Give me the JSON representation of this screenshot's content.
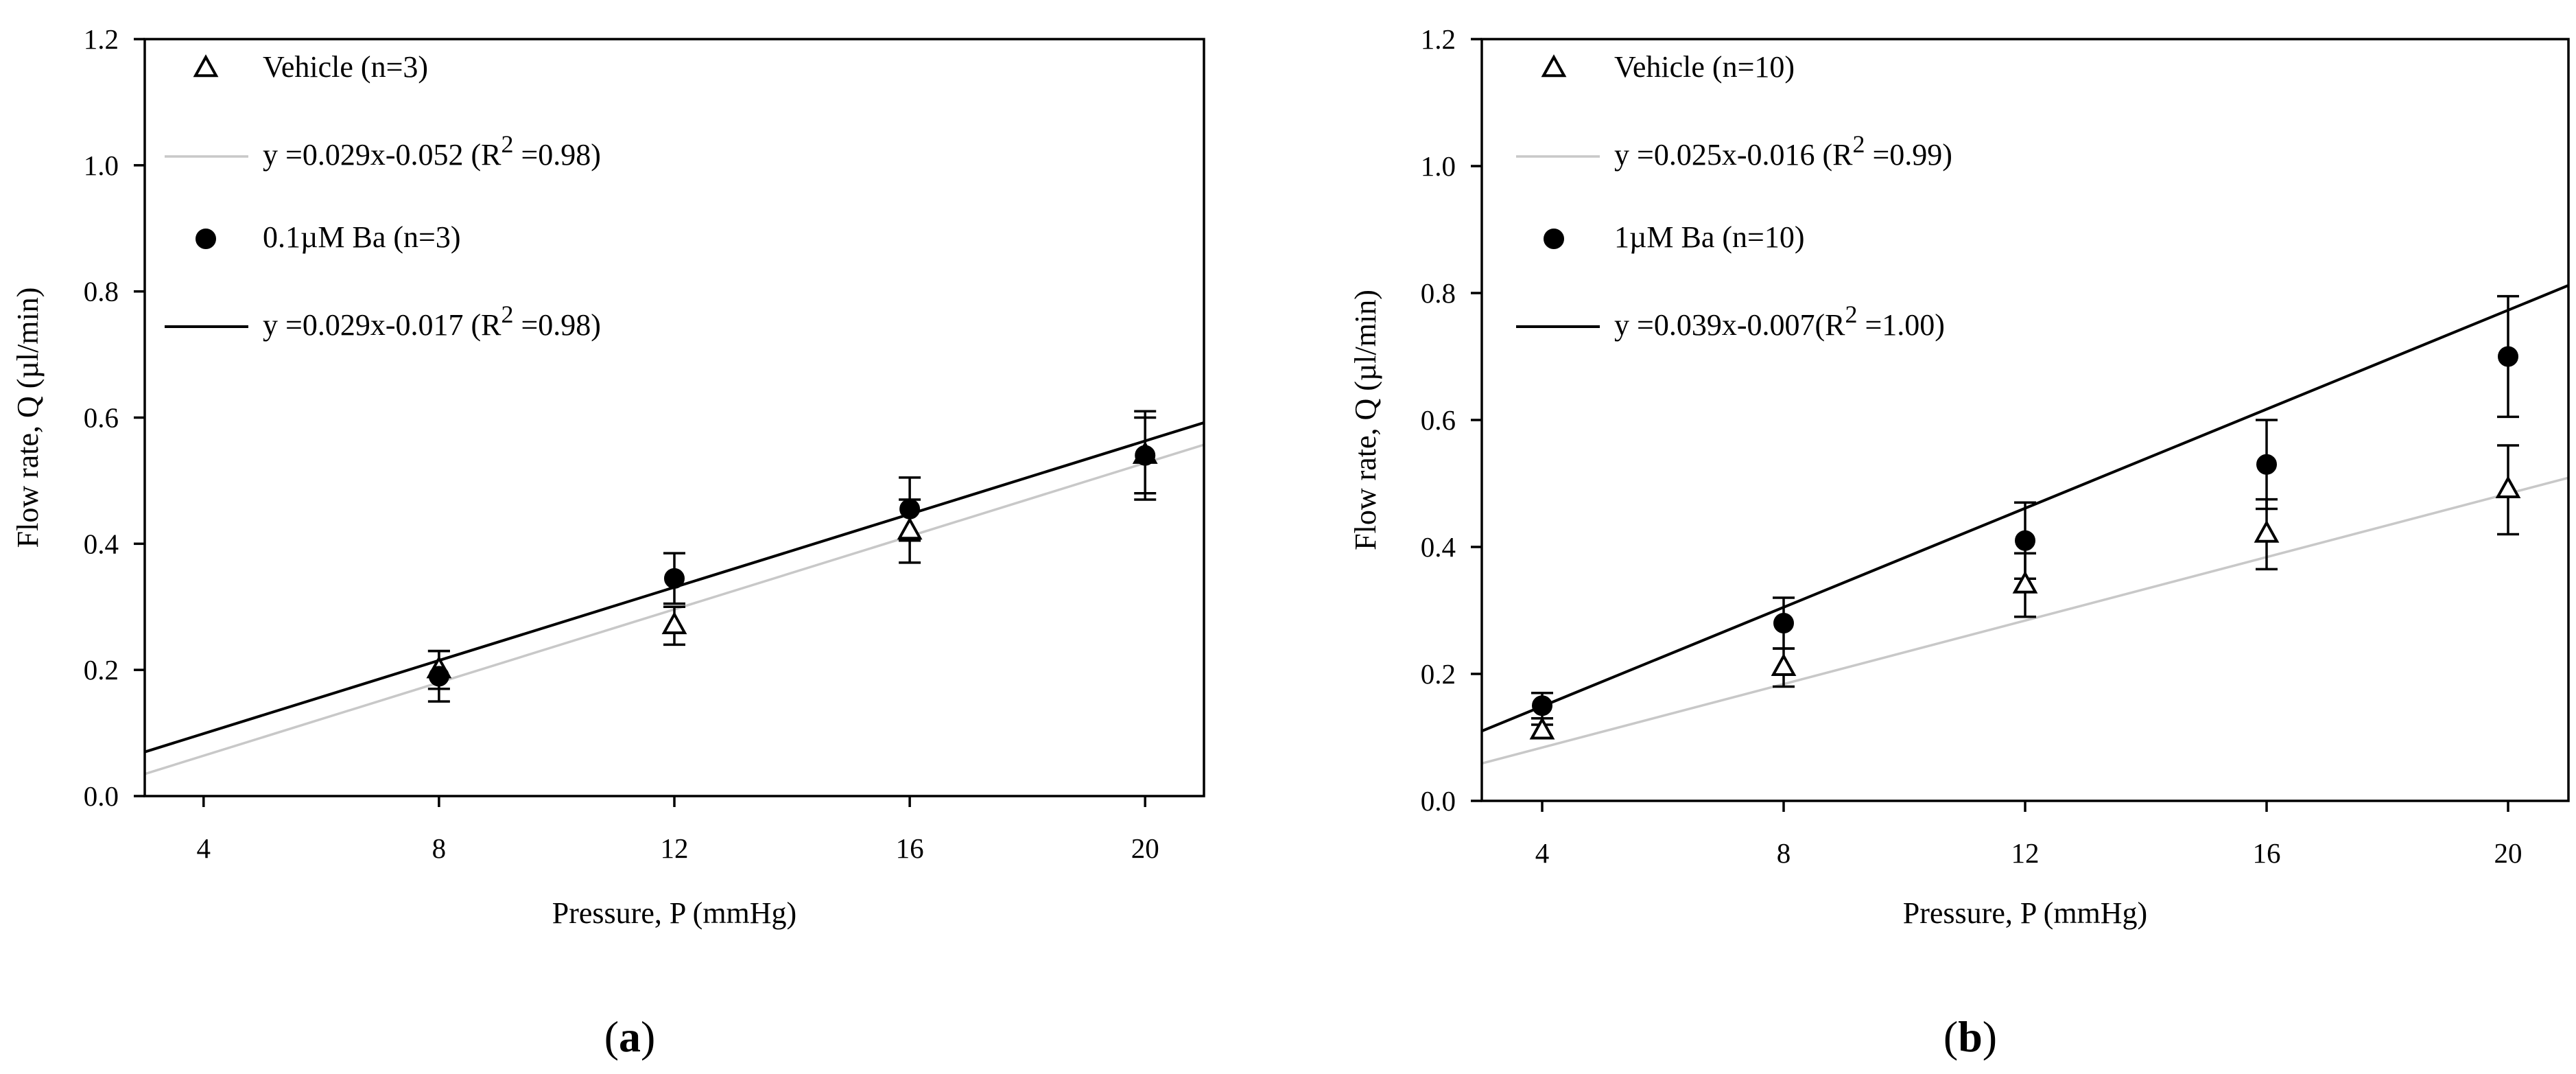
{
  "figure": {
    "panels": [
      {
        "open": "(",
        "letter": "a",
        "close": ")"
      },
      {
        "open": "(",
        "letter": "b",
        "close": ")"
      }
    ]
  },
  "chart_data": [
    {
      "type": "scatter",
      "panel": "a",
      "xlabel": "Pressure, P (mmHg)",
      "ylabel": "Flow rate, Q (µl/min)",
      "xlim": [
        3,
        21
      ],
      "ylim": [
        0,
        1.2
      ],
      "xticks": [
        4,
        8,
        12,
        16,
        20
      ],
      "yticks": [
        0.0,
        0.2,
        0.4,
        0.6,
        0.8,
        1.0,
        1.2
      ],
      "legend_position": "top-left",
      "series": [
        {
          "name": "Vehicle (n=3)",
          "marker": "open-triangle",
          "x": [
            8,
            12,
            16,
            20
          ],
          "y": [
            0.2,
            0.27,
            0.42,
            0.54
          ],
          "yerr": [
            0.03,
            0.03,
            0.05,
            0.06
          ]
        },
        {
          "name": "0.1µM Ba (n=3)",
          "marker": "filled-circle",
          "x": [
            8,
            12,
            16,
            20
          ],
          "y": [
            0.19,
            0.345,
            0.455,
            0.54
          ],
          "yerr": [
            0.04,
            0.04,
            0.05,
            0.07
          ]
        }
      ],
      "fits": [
        {
          "label_pre": "y =0.029x-0.052 (R",
          "label_sup": "2",
          "label_post": " =0.98)",
          "slope": 0.029,
          "intercept": -0.052,
          "color": "#c8c8c8"
        },
        {
          "label_pre": "y =0.029x-0.017 (R",
          "label_sup": "2",
          "label_post": " =0.98)",
          "slope": 0.029,
          "intercept": -0.017,
          "color": "#000000"
        }
      ]
    },
    {
      "type": "scatter",
      "panel": "b",
      "xlabel": "Pressure, P (mmHg)",
      "ylabel": "Flow rate, Q (µl/min)",
      "xlim": [
        3,
        21
      ],
      "ylim": [
        0,
        1.2
      ],
      "xticks": [
        4,
        8,
        12,
        16,
        20
      ],
      "yticks": [
        0.0,
        0.2,
        0.4,
        0.6,
        0.8,
        1.0,
        1.2
      ],
      "legend_position": "top-left",
      "series": [
        {
          "name": "Vehicle (n=10)",
          "marker": "open-triangle",
          "x": [
            4,
            8,
            12,
            16,
            20
          ],
          "y": [
            0.11,
            0.21,
            0.34,
            0.42,
            0.49
          ],
          "yerr": [
            0.01,
            0.03,
            0.05,
            0.055,
            0.07
          ]
        },
        {
          "name": "1µM Ba (n=10)",
          "marker": "filled-circle",
          "x": [
            4,
            8,
            12,
            16,
            20
          ],
          "y": [
            0.15,
            0.28,
            0.41,
            0.53,
            0.7
          ],
          "yerr": [
            0.02,
            0.04,
            0.06,
            0.07,
            0.095
          ]
        }
      ],
      "fits": [
        {
          "label_pre": "y =0.025x-0.016 (R",
          "label_sup": "2",
          "label_post": " =0.99)",
          "slope": 0.025,
          "intercept": -0.016,
          "color": "#c8c8c8"
        },
        {
          "label_pre": "y =0.039x-0.007(R",
          "label_sup": "2",
          "label_post": " =1.00)",
          "slope": 0.039,
          "intercept": -0.007,
          "color": "#000000"
        }
      ]
    }
  ]
}
